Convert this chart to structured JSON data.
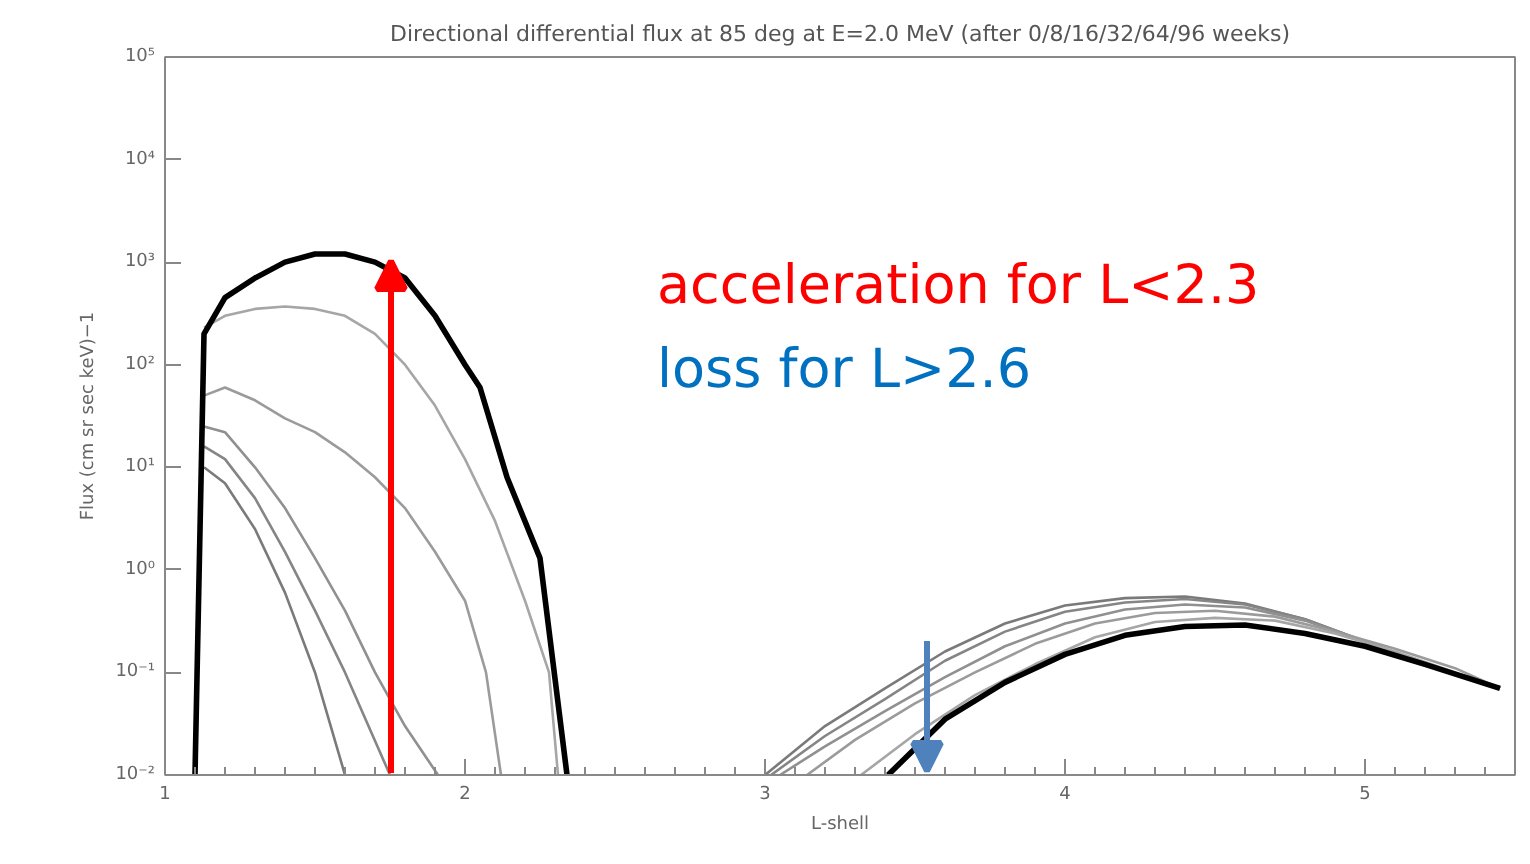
{
  "chart_data": {
    "type": "line",
    "title": "Directional differential flux at 85 deg at E=2.0 MeV (after 0/8/16/32/64/96 weeks)",
    "xlabel": "L-shell",
    "ylabel": "Flux (cm sr sec keV)−1",
    "log": "y",
    "grid": false,
    "xlim": [
      1,
      5.5
    ],
    "ylim": [
      0.01,
      100000
    ],
    "xticks": [
      1,
      2,
      3,
      4,
      5
    ],
    "yticks": [
      {
        "value": 0.01,
        "label": "10⁻²"
      },
      {
        "value": 0.1,
        "label": "10⁻¹"
      },
      {
        "value": 1,
        "label": "10⁰"
      },
      {
        "value": 10,
        "label": "10¹"
      },
      {
        "value": 100,
        "label": "10²"
      },
      {
        "value": 1000,
        "label": "10³"
      },
      {
        "value": 10000,
        "label": "10⁴"
      },
      {
        "value": 100000,
        "label": "10⁵"
      }
    ],
    "annotations": [
      "acceleration for L<2.3",
      "loss for L>2.6"
    ],
    "series": [
      {
        "color": "#7a7a7a",
        "x": [
          1.13,
          1.2,
          1.3,
          1.4,
          1.5,
          1.6,
          2.5,
          3.0,
          3.2,
          3.4,
          3.6,
          3.8,
          4.0,
          4.2,
          4.4,
          4.6,
          4.8,
          5.0,
          5.2,
          5.45
        ],
        "values": [
          10,
          7,
          2.5,
          0.6,
          0.1,
          0.01,
          null,
          0.01,
          0.03,
          0.07,
          0.16,
          0.3,
          0.45,
          0.53,
          0.55,
          0.47,
          0.33,
          0.2,
          0.12,
          0.07
        ]
      },
      {
        "color": "#858585",
        "x": [
          1.13,
          1.2,
          1.3,
          1.4,
          1.5,
          1.6,
          1.75,
          2.5,
          3.02,
          3.2,
          3.4,
          3.6,
          3.8,
          4.0,
          4.2,
          4.4,
          4.6,
          4.8,
          5.0,
          5.2,
          5.45
        ],
        "values": [
          16,
          12,
          5,
          1.5,
          0.4,
          0.1,
          0.01,
          null,
          0.01,
          0.024,
          0.055,
          0.13,
          0.25,
          0.39,
          0.48,
          0.52,
          0.46,
          0.33,
          0.2,
          0.12,
          0.07
        ]
      },
      {
        "color": "#909090",
        "x": [
          1.13,
          1.2,
          1.3,
          1.4,
          1.5,
          1.6,
          1.7,
          1.8,
          1.91,
          2.5,
          3.05,
          3.2,
          3.4,
          3.6,
          3.8,
          4.0,
          4.2,
          4.4,
          4.6,
          4.8,
          5.0,
          5.2,
          5.45
        ],
        "values": [
          25,
          22,
          10,
          4,
          1.3,
          0.4,
          0.1,
          0.03,
          0.01,
          null,
          0.01,
          0.019,
          0.042,
          0.09,
          0.18,
          0.3,
          0.41,
          0.46,
          0.43,
          0.32,
          0.2,
          0.12,
          0.07
        ]
      },
      {
        "color": "#9b9b9b",
        "x": [
          1.13,
          1.2,
          1.3,
          1.4,
          1.5,
          1.6,
          1.7,
          1.8,
          1.9,
          2.0,
          2.07,
          2.12,
          2.6,
          3.14,
          3.3,
          3.5,
          3.7,
          3.9,
          4.1,
          4.3,
          4.5,
          4.7,
          4.9,
          5.1,
          5.3,
          5.45
        ],
        "values": [
          50,
          60,
          45,
          30,
          22,
          14,
          8,
          4,
          1.5,
          0.5,
          0.1,
          0.01,
          null,
          0.01,
          0.022,
          0.05,
          0.1,
          0.19,
          0.3,
          0.38,
          0.4,
          0.35,
          0.25,
          0.17,
          0.11,
          0.07
        ]
      },
      {
        "color": "#a6a6a6",
        "x": [
          1.13,
          1.2,
          1.3,
          1.4,
          1.5,
          1.6,
          1.7,
          1.8,
          1.9,
          2.0,
          2.1,
          2.2,
          2.28,
          2.31,
          2.8,
          3.32,
          3.5,
          3.7,
          3.9,
          4.1,
          4.3,
          4.5,
          4.7,
          4.9,
          5.1,
          5.3,
          5.45
        ],
        "values": [
          230,
          300,
          350,
          370,
          350,
          300,
          200,
          100,
          40,
          12,
          3,
          0.5,
          0.1,
          0.01,
          null,
          0.01,
          0.025,
          0.06,
          0.12,
          0.22,
          0.31,
          0.34,
          0.32,
          0.24,
          0.16,
          0.1,
          0.07
        ]
      },
      {
        "color": "#000000",
        "x": [
          1.1,
          1.13,
          1.2,
          1.3,
          1.4,
          1.5,
          1.6,
          1.7,
          1.8,
          1.9,
          2.0,
          2.05,
          2.14,
          2.25,
          2.34,
          2.9,
          3.41,
          3.6,
          3.8,
          4.0,
          4.2,
          4.4,
          4.6,
          4.8,
          5.0,
          5.2,
          5.45
        ],
        "values": [
          0.01,
          200,
          450,
          700,
          1000,
          1200,
          1200,
          1000,
          700,
          300,
          100,
          60,
          8,
          1.3,
          0.01,
          null,
          0.01,
          0.035,
          0.08,
          0.15,
          0.23,
          0.28,
          0.29,
          0.24,
          0.18,
          0.12,
          0.07
        ]
      }
    ]
  }
}
